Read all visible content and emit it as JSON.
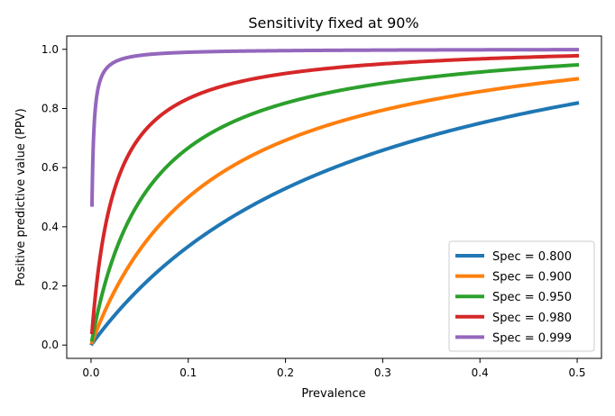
{
  "chart_data": {
    "type": "line",
    "title": "Sensitivity fixed at 90%",
    "xlabel": "Prevalence",
    "ylabel": "Positive predictive value (PPV)",
    "xlim": [
      -0.025,
      0.525
    ],
    "ylim": [
      -0.045,
      1.045
    ],
    "xticks": [
      0.0,
      0.1,
      0.2,
      0.3,
      0.4,
      0.5
    ],
    "xtick_labels": [
      "0.0",
      "0.1",
      "0.2",
      "0.3",
      "0.4",
      "0.5"
    ],
    "yticks": [
      0.0,
      0.2,
      0.4,
      0.6,
      0.8,
      1.0
    ],
    "ytick_labels": [
      "0.0",
      "0.2",
      "0.4",
      "0.6",
      "0.8",
      "1.0"
    ],
    "sensitivity": 0.9,
    "prevalence_range": [
      0.001,
      0.5
    ],
    "grid": false,
    "legend_position": "lower-right",
    "series": [
      {
        "name": "Spec = 0.800",
        "specificity": 0.8,
        "color": "#1f77b4"
      },
      {
        "name": "Spec = 0.900",
        "specificity": 0.9,
        "color": "#ff7f0e"
      },
      {
        "name": "Spec = 0.950",
        "specificity": 0.95,
        "color": "#2ca02c"
      },
      {
        "name": "Spec = 0.980",
        "specificity": 0.98,
        "color": "#d62728"
      },
      {
        "name": "Spec = 0.999",
        "specificity": 0.999,
        "color": "#9467bd"
      }
    ]
  }
}
